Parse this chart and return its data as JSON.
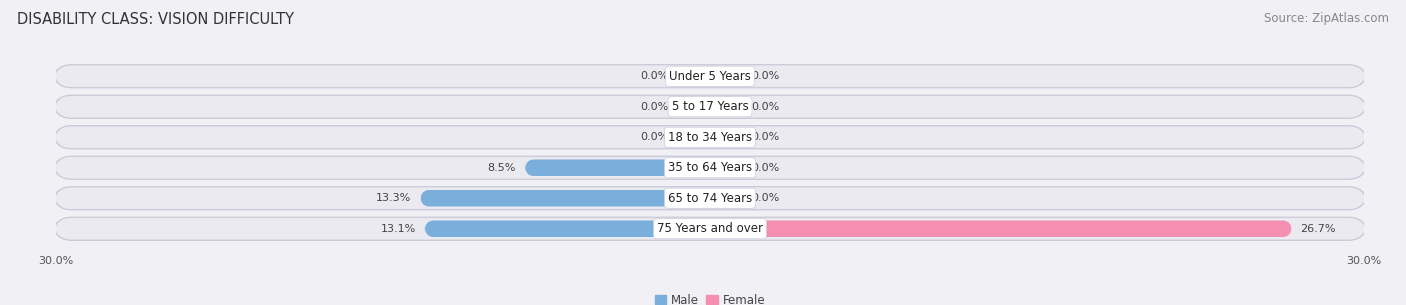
{
  "title": "DISABILITY CLASS: VISION DIFFICULTY",
  "source": "Source: ZipAtlas.com",
  "categories": [
    "Under 5 Years",
    "5 to 17 Years",
    "18 to 34 Years",
    "35 to 64 Years",
    "65 to 74 Years",
    "75 Years and over"
  ],
  "male_values": [
    0.0,
    0.0,
    0.0,
    8.5,
    13.3,
    13.1
  ],
  "female_values": [
    0.0,
    0.0,
    0.0,
    0.0,
    0.0,
    26.7
  ],
  "male_color": "#7aaedb",
  "female_color": "#f48fb1",
  "row_bg_outer": "#d8d8e2",
  "row_bg_inner": "#eaeaf0",
  "x_min": -30.0,
  "x_max": 30.0,
  "zero_stub": 1.5,
  "title_fontsize": 10.5,
  "source_fontsize": 8.5,
  "label_fontsize": 8.0,
  "category_fontsize": 8.5,
  "bar_height": 0.62,
  "background_color": "#f0f0f5"
}
